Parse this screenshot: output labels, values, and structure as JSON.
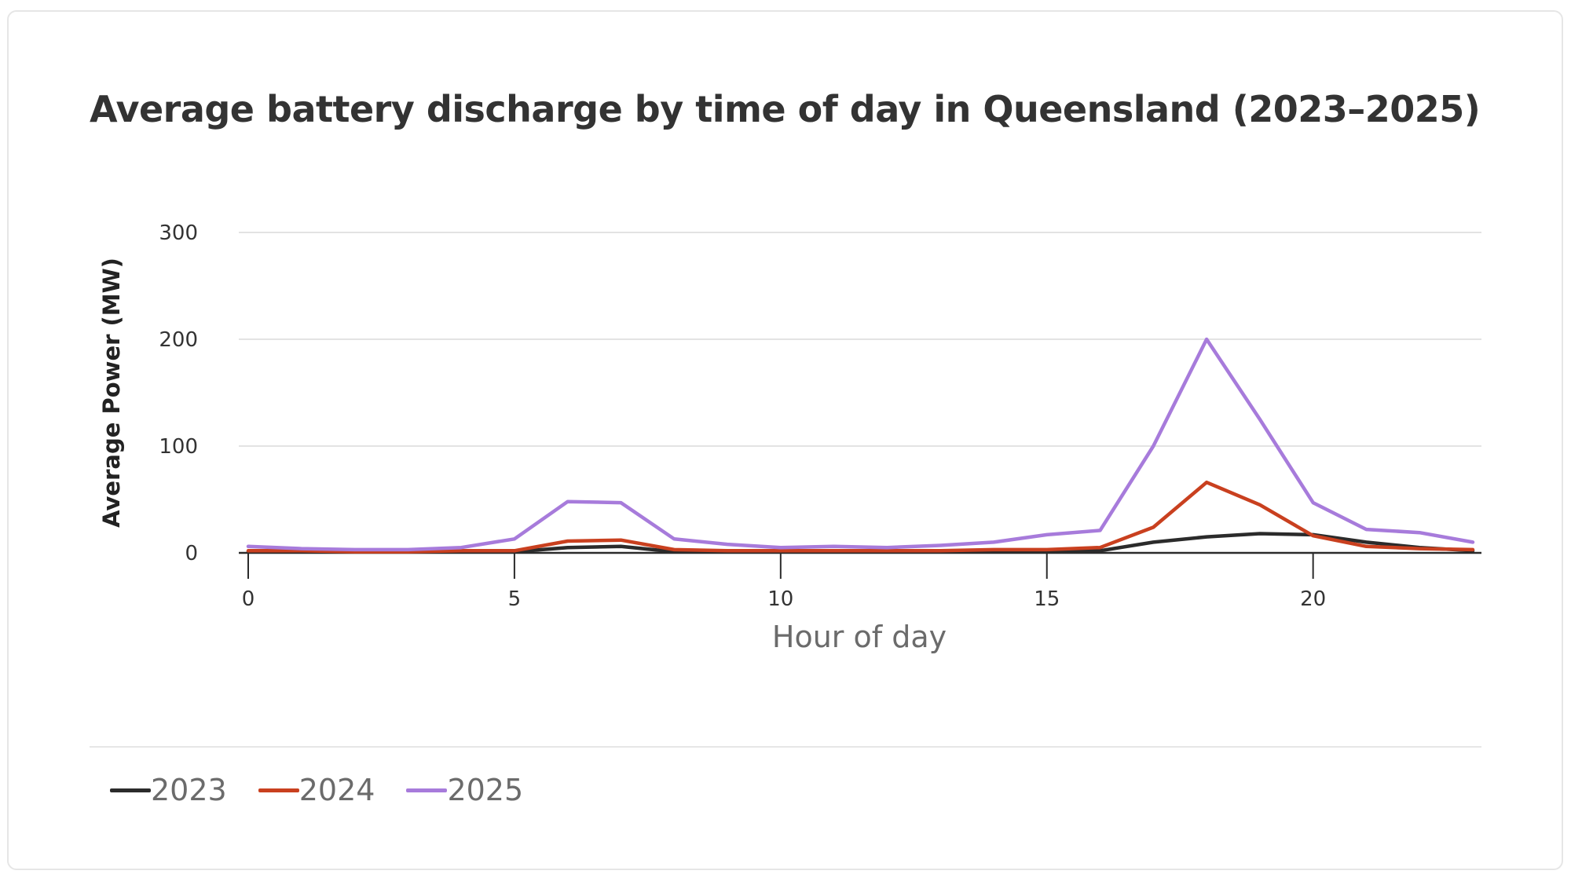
{
  "chart_data": {
    "type": "line",
    "title": "Average battery discharge by time of day in Queensland (2023–2025)",
    "xlabel": "Hour of day",
    "ylabel": "Average Power (MW)",
    "x": [
      0,
      1,
      2,
      3,
      4,
      5,
      6,
      7,
      8,
      9,
      10,
      11,
      12,
      13,
      14,
      15,
      16,
      17,
      18,
      19,
      20,
      21,
      22,
      23
    ],
    "xlim": [
      0,
      23
    ],
    "ylim": [
      0,
      300
    ],
    "x_ticks": [
      0,
      5,
      10,
      15,
      20
    ],
    "y_ticks": [
      0,
      100,
      200,
      300
    ],
    "grid": true,
    "legend_position": "bottom-left",
    "series": [
      {
        "name": "2023",
        "color": "#2b2b2b",
        "values": [
          1,
          1,
          1,
          1,
          1,
          1,
          5,
          6,
          1,
          1,
          1,
          1,
          1,
          1,
          1,
          1,
          2,
          10,
          15,
          18,
          17,
          10,
          5,
          2
        ]
      },
      {
        "name": "2024",
        "color": "#c9401f",
        "values": [
          2,
          2,
          1,
          1,
          2,
          2,
          11,
          12,
          3,
          2,
          2,
          2,
          2,
          2,
          3,
          3,
          5,
          24,
          66,
          45,
          16,
          6,
          4,
          3
        ]
      },
      {
        "name": "2025",
        "color": "#a77bdb",
        "values": [
          6,
          4,
          3,
          3,
          5,
          13,
          48,
          47,
          13,
          8,
          5,
          6,
          5,
          7,
          10,
          17,
          21,
          100,
          200,
          125,
          47,
          22,
          19,
          10
        ]
      }
    ]
  }
}
